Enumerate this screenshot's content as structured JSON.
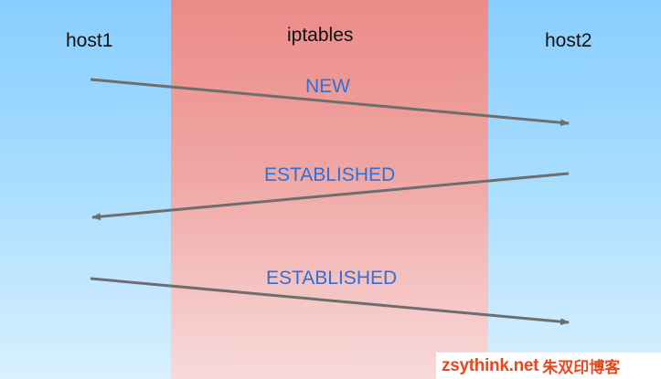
{
  "columns": {
    "left_title": "host1",
    "middle_title": "iptables",
    "right_title": "host2"
  },
  "messages": [
    {
      "label": "NEW",
      "direction": "host1-to-host2"
    },
    {
      "label": "ESTABLISHED",
      "direction": "host2-to-host1"
    },
    {
      "label": "ESTABLISHED",
      "direction": "host1-to-host2"
    }
  ],
  "colors": {
    "host_column": "#88ceff",
    "iptables_column": "#ec8b88",
    "arrow": "#6e6e6e",
    "state_label": "#2f6fd6",
    "watermark": "#e4481e"
  },
  "watermark": {
    "site": "zsythink.net",
    "blog_name": "朱双印博客"
  }
}
